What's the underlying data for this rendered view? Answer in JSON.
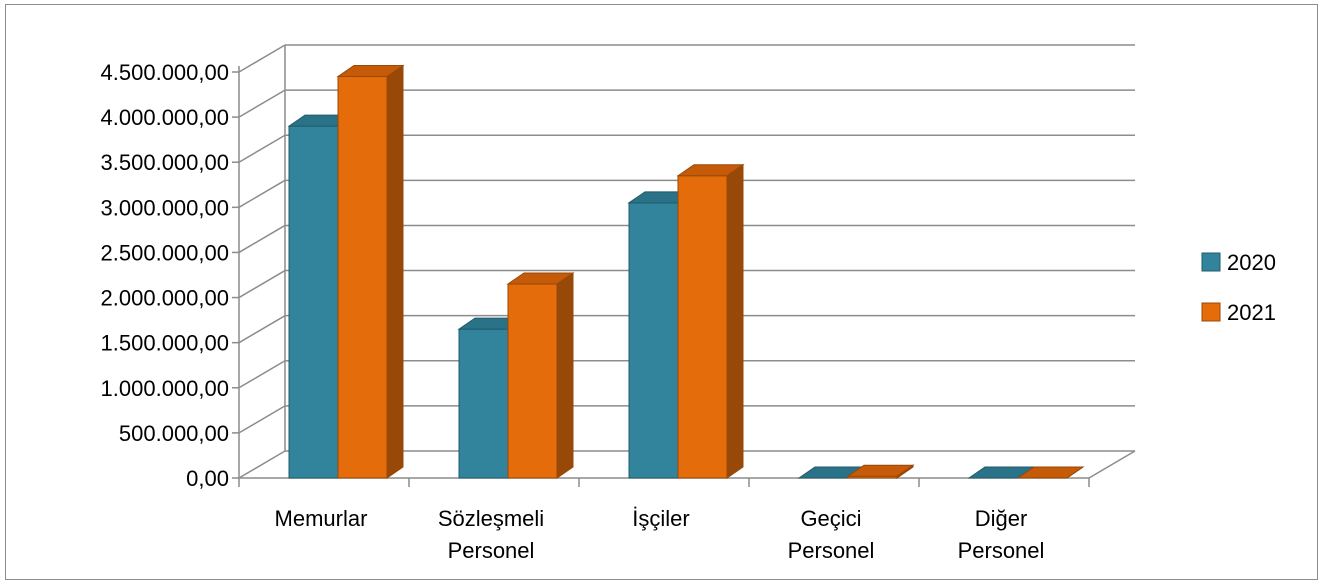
{
  "chart_data": {
    "type": "bar",
    "categories": [
      [
        "Memurlar"
      ],
      [
        "Sözleşmeli",
        "Personel"
      ],
      [
        "İşçiler"
      ],
      [
        "Geçici",
        "Personel"
      ],
      [
        "Diğer",
        "Personel"
      ]
    ],
    "series": [
      {
        "name": "2020",
        "values": [
          3900000,
          1650000,
          3050000,
          0,
          0
        ],
        "color": "#31849b",
        "side_color": "#215b6b",
        "top_color": "#2a7287"
      },
      {
        "name": "2021",
        "values": [
          4450000,
          2150000,
          3350000,
          20000,
          0
        ],
        "color": "#e46c0a",
        "side_color": "#984807",
        "top_color": "#c55a08"
      }
    ],
    "y_ticks": [
      "0,00",
      "500.000,00",
      "1.000.000,00",
      "1.500.000,00",
      "2.000.000,00",
      "2.500.000,00",
      "3.000.000,00",
      "3.500.000,00",
      "4.000.000,00",
      "4.500.000,00"
    ],
    "ylim": [
      0,
      4500000
    ],
    "grid": true,
    "three_d": true,
    "legend_position": "right",
    "title": "",
    "xlabel": "",
    "ylabel": ""
  }
}
